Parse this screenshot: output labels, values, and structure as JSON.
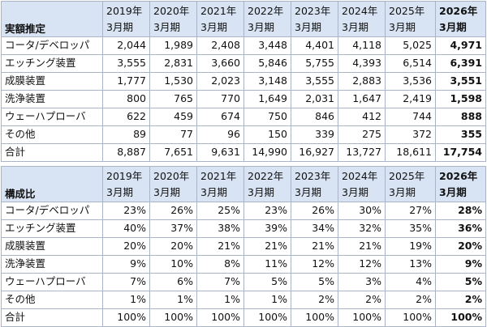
{
  "table1": {
    "title": "実額推定",
    "headers": [
      {
        "year": "2019年",
        "period": "3月期",
        "bold": false
      },
      {
        "year": "2020年",
        "period": "3月期",
        "bold": false
      },
      {
        "year": "2021年",
        "period": "3月期",
        "bold": false
      },
      {
        "year": "2022年",
        "period": "3月期",
        "bold": false
      },
      {
        "year": "2023年",
        "period": "3月期",
        "bold": false
      },
      {
        "year": "2024年",
        "period": "3月期",
        "bold": false
      },
      {
        "year": "2025年",
        "period": "3月期",
        "bold": false
      },
      {
        "year": "2026年",
        "period": "3月期",
        "bold": true
      }
    ],
    "rows": [
      {
        "label": "コータ/デベロッパ",
        "values": [
          "2,044",
          "1,989",
          "2,408",
          "3,448",
          "4,401",
          "4,118",
          "5,025",
          "4,971"
        ]
      },
      {
        "label": "エッチング装置",
        "values": [
          "3,555",
          "2,831",
          "3,660",
          "5,846",
          "5,755",
          "4,393",
          "6,514",
          "6,391"
        ]
      },
      {
        "label": "成膜装置",
        "values": [
          "1,777",
          "1,530",
          "2,023",
          "3,148",
          "3,555",
          "2,883",
          "3,536",
          "3,551"
        ]
      },
      {
        "label": "洗浄装置",
        "values": [
          "800",
          "765",
          "770",
          "1,649",
          "2,031",
          "1,647",
          "2,419",
          "1,598"
        ]
      },
      {
        "label": "ウェーハプローバ",
        "values": [
          "622",
          "459",
          "674",
          "750",
          "846",
          "412",
          "744",
          "888"
        ]
      },
      {
        "label": "その他",
        "values": [
          "89",
          "77",
          "96",
          "150",
          "339",
          "275",
          "372",
          "355"
        ]
      },
      {
        "label": "合計",
        "values": [
          "8,887",
          "7,651",
          "9,631",
          "14,990",
          "16,927",
          "13,727",
          "18,611",
          "17,754"
        ]
      }
    ]
  },
  "table2": {
    "title": "構成比",
    "headers": [
      {
        "year": "2019年",
        "period": "3月期",
        "bold": false
      },
      {
        "year": "2020年",
        "period": "3月期",
        "bold": false
      },
      {
        "year": "2021年",
        "period": "3月期",
        "bold": false
      },
      {
        "year": "2022年",
        "period": "3月期",
        "bold": false
      },
      {
        "year": "2023年",
        "period": "3月期",
        "bold": false
      },
      {
        "year": "2024年",
        "period": "3月期",
        "bold": false
      },
      {
        "year": "2025年",
        "period": "3月期",
        "bold": false
      },
      {
        "year": "2026年",
        "period": "3月期",
        "bold": true
      }
    ],
    "rows": [
      {
        "label": "コータ/デベロッパ",
        "values": [
          "23%",
          "26%",
          "25%",
          "23%",
          "26%",
          "30%",
          "27%",
          "28%"
        ]
      },
      {
        "label": "エッチング装置",
        "values": [
          "40%",
          "37%",
          "38%",
          "39%",
          "34%",
          "32%",
          "35%",
          "36%"
        ]
      },
      {
        "label": "成膜装置",
        "values": [
          "20%",
          "20%",
          "21%",
          "21%",
          "21%",
          "21%",
          "19%",
          "20%"
        ]
      },
      {
        "label": "洗浄装置",
        "values": [
          "9%",
          "10%",
          "8%",
          "11%",
          "12%",
          "12%",
          "13%",
          "9%"
        ]
      },
      {
        "label": "ウェーハプローバ",
        "values": [
          "7%",
          "6%",
          "7%",
          "5%",
          "5%",
          "3%",
          "4%",
          "5%"
        ]
      },
      {
        "label": "その他",
        "values": [
          "1%",
          "1%",
          "1%",
          "1%",
          "2%",
          "2%",
          "2%",
          "2%"
        ]
      },
      {
        "label": "合計",
        "values": [
          "100%",
          "100%",
          "100%",
          "100%",
          "100%",
          "100%",
          "100%",
          "100%"
        ]
      }
    ]
  }
}
